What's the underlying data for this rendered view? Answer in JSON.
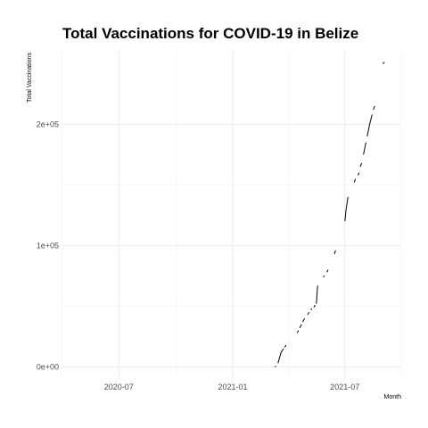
{
  "chart_data": {
    "type": "line",
    "title": "Total Vaccinations for COVID-19 in Belize",
    "xlabel": "Month",
    "ylabel": "Total Vaccinations",
    "x_ticks": [
      {
        "date": "2020-07-01",
        "label": "2020-07"
      },
      {
        "date": "2021-01-01",
        "label": "2021-01"
      },
      {
        "date": "2021-07-01",
        "label": "2021-07"
      }
    ],
    "y_ticks": [
      {
        "value": 0,
        "label": "0e+00"
      },
      {
        "value": 100000,
        "label": "1e+05"
      },
      {
        "value": 200000,
        "label": "2e+05"
      }
    ],
    "xlim": [
      "2020-04-01",
      "2021-09-30"
    ],
    "ylim": [
      -10000,
      262000
    ],
    "grid": true,
    "segments": [
      [
        [
          "2021-03-10",
          0
        ],
        [
          "2021-03-12",
          500
        ]
      ],
      [
        [
          "2021-03-15",
          3000
        ],
        [
          "2021-03-20",
          12000
        ],
        [
          "2021-03-24",
          15000
        ]
      ],
      [
        [
          "2021-03-26",
          16000
        ],
        [
          "2021-03-28",
          18000
        ]
      ],
      [
        [
          "2021-04-15",
          28000
        ],
        [
          "2021-04-17",
          30000
        ]
      ],
      [
        [
          "2021-04-19",
          32000
        ],
        [
          "2021-04-22",
          35000
        ]
      ],
      [
        [
          "2021-04-24",
          37000
        ],
        [
          "2021-04-27",
          40000
        ]
      ],
      [
        [
          "2021-05-02",
          43000
        ],
        [
          "2021-05-04",
          45000
        ]
      ],
      [
        [
          "2021-05-07",
          47000
        ],
        [
          "2021-05-09",
          48000
        ]
      ],
      [
        [
          "2021-05-12",
          49000
        ],
        [
          "2021-05-14",
          51000
        ]
      ],
      [
        [
          "2021-05-16",
          52000
        ],
        [
          "2021-05-17",
          60000
        ],
        [
          "2021-05-18",
          67000
        ]
      ],
      [
        [
          "2021-05-27",
          74000
        ],
        [
          "2021-05-29",
          75000
        ]
      ],
      [
        [
          "2021-06-02",
          78000
        ],
        [
          "2021-06-04",
          80000
        ]
      ],
      [
        [
          "2021-06-14",
          93000
        ],
        [
          "2021-06-16",
          96000
        ]
      ],
      [
        [
          "2021-07-01",
          120000
        ],
        [
          "2021-07-03",
          130000
        ],
        [
          "2021-07-06",
          140000
        ]
      ],
      [
        [
          "2021-07-16",
          152000
        ],
        [
          "2021-07-18",
          155000
        ]
      ],
      [
        [
          "2021-07-22",
          158000
        ],
        [
          "2021-07-24",
          160000
        ]
      ],
      [
        [
          "2021-07-26",
          165000
        ],
        [
          "2021-07-28",
          168000
        ]
      ],
      [
        [
          "2021-07-31",
          175000
        ],
        [
          "2021-08-02",
          180000
        ],
        [
          "2021-08-04",
          185000
        ]
      ],
      [
        [
          "2021-08-06",
          190000
        ],
        [
          "2021-08-10",
          200000
        ],
        [
          "2021-08-14",
          208000
        ]
      ],
      [
        [
          "2021-08-16",
          212000
        ],
        [
          "2021-08-18",
          215000
        ]
      ],
      [
        [
          "2021-08-31",
          250000
        ],
        [
          "2021-09-03",
          251000
        ]
      ]
    ]
  }
}
